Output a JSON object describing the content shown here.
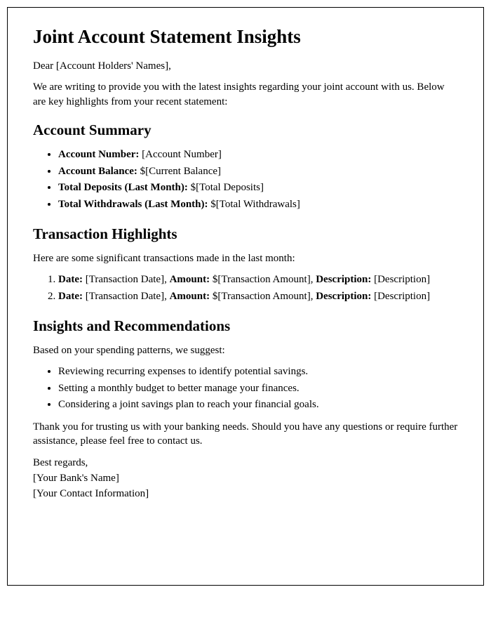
{
  "title": "Joint Account Statement Insights",
  "greeting_prefix": "Dear ",
  "greeting_name": "[Account Holders' Names]",
  "greeting_suffix": ",",
  "intro": "We are writing to provide you with the latest insights regarding your joint account with us. Below are key highlights from your recent statement:",
  "summary": {
    "heading": "Account Summary",
    "account_number_label": "Account Number:",
    "account_number_value": " [Account Number]",
    "balance_label": "Account Balance:",
    "balance_value": " $[Current Balance]",
    "deposits_label": "Total Deposits (Last Month):",
    "deposits_value": " $[Total Deposits]",
    "withdrawals_label": "Total Withdrawals (Last Month):",
    "withdrawals_value": " $[Total Withdrawals]"
  },
  "transactions": {
    "heading": "Transaction Highlights",
    "intro": "Here are some significant transactions made in the last month:",
    "date_label": "Date:",
    "amount_label": "Amount:",
    "desc_label": "Description:",
    "item1_date": " [Transaction Date], ",
    "item1_amount": " $[Transaction Amount], ",
    "item1_desc": " [Description]",
    "item2_date": " [Transaction Date], ",
    "item2_amount": " $[Transaction Amount], ",
    "item2_desc": " [Description]"
  },
  "insights": {
    "heading": "Insights and Recommendations",
    "intro": "Based on your spending patterns, we suggest:",
    "rec1": "Reviewing recurring expenses to identify potential savings.",
    "rec2": "Setting a monthly budget to better manage your finances.",
    "rec3": "Considering a joint savings plan to reach your financial goals."
  },
  "closing": "Thank you for trusting us with your banking needs. Should you have any questions or require further assistance, please feel free to contact us.",
  "signoff": "Best regards,",
  "bank_name": "[Your Bank's Name]",
  "contact_info": "[Your Contact Information]"
}
